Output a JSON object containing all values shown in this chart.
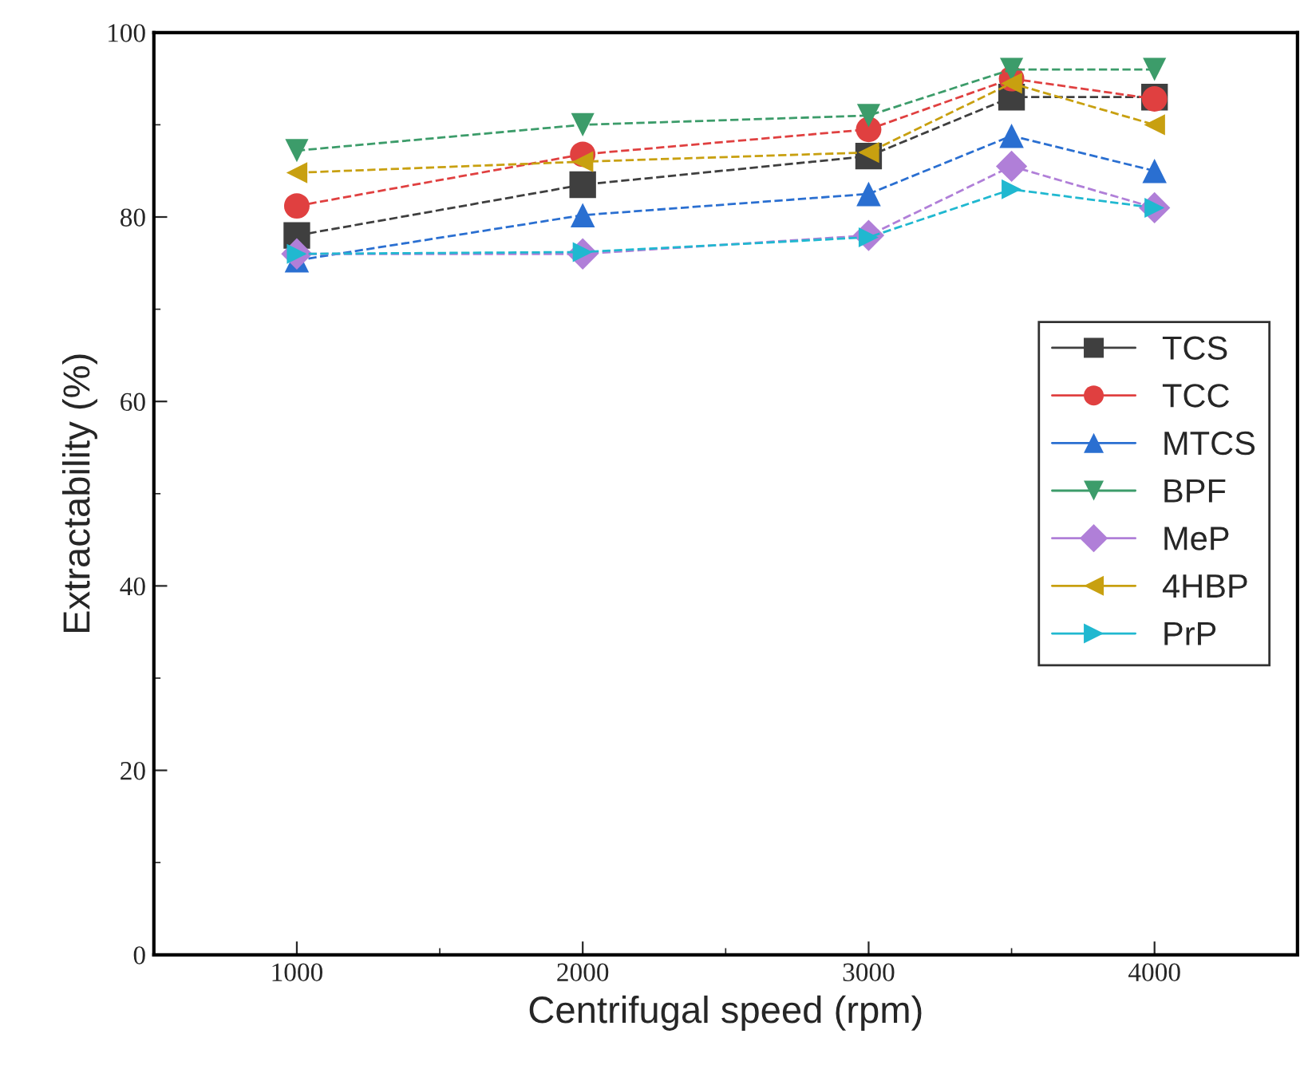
{
  "chart_data": {
    "type": "line",
    "xlabel": "Centrifugal speed (rpm)",
    "ylabel": "Extractability (%)",
    "x": [
      1000,
      2000,
      3000,
      3500,
      4000
    ],
    "xlim": [
      500,
      4500
    ],
    "xticks": [
      1000,
      2000,
      3000,
      4000
    ],
    "ylim": [
      0,
      100
    ],
    "yticks": [
      0,
      20,
      40,
      60,
      80,
      100
    ],
    "grid": false,
    "legend": "right",
    "line_style": "dashed",
    "series": [
      {
        "name": "TCS",
        "color": "#3f3f3f",
        "marker": "square",
        "values": [
          78,
          83.5,
          86.6,
          93,
          93
        ]
      },
      {
        "name": "TCC",
        "color": "#e04040",
        "marker": "circle",
        "values": [
          81.2,
          86.8,
          89.5,
          95,
          92.8
        ]
      },
      {
        "name": "MTCS",
        "color": "#2a6fd1",
        "marker": "triangle",
        "values": [
          75.3,
          80.2,
          82.5,
          88.8,
          85
        ]
      },
      {
        "name": "BPF",
        "color": "#3c9c6a",
        "marker": "triangle_down",
        "values": [
          87.2,
          90,
          91,
          96,
          96
        ]
      },
      {
        "name": "MeP",
        "color": "#b07fd8",
        "marker": "diamond",
        "values": [
          76,
          76,
          78,
          85.5,
          81
        ]
      },
      {
        "name": "4HBP",
        "color": "#c8a010",
        "marker": "triangle_left",
        "values": [
          84.8,
          86,
          87,
          94.5,
          90
        ]
      },
      {
        "name": "PrP",
        "color": "#20b8d0",
        "marker": "triangle_right",
        "values": [
          76,
          76.2,
          77.8,
          83,
          81
        ]
      }
    ]
  }
}
